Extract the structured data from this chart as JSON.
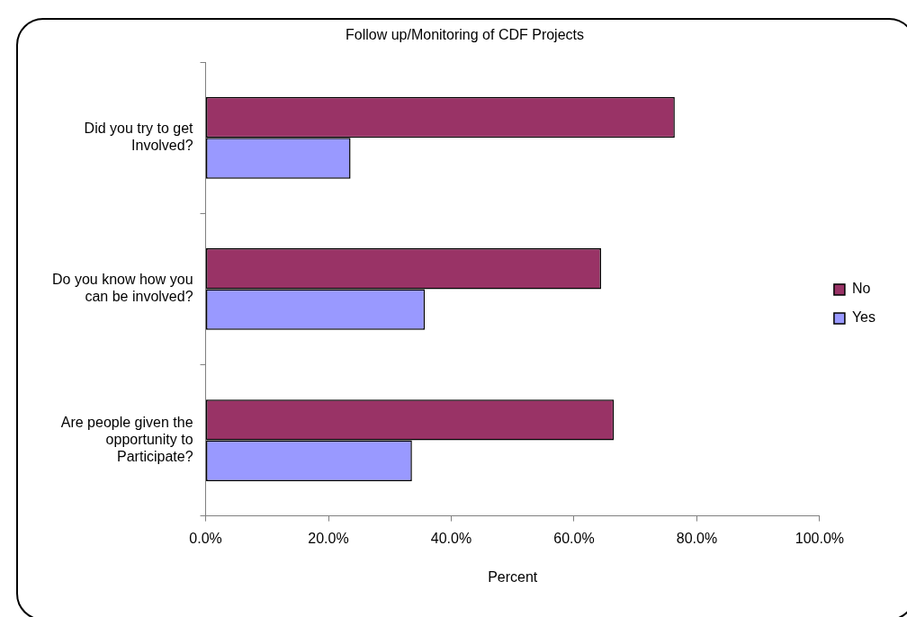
{
  "chart_data": {
    "type": "bar",
    "orientation": "horizontal",
    "title": "Follow up/Monitoring of CDF Projects",
    "xlabel": "Percent",
    "categories": [
      "Did you try to get Involved?",
      "Do you know how you can be involved?",
      "Are people given the opportunity to Participate?"
    ],
    "series": [
      {
        "name": "No",
        "color": "#993366",
        "values": [
          76.4,
          64.4,
          66.5
        ]
      },
      {
        "name": "Yes",
        "color": "#9999ff",
        "values": [
          23.6,
          35.7,
          33.6
        ]
      }
    ],
    "xlim": [
      0,
      100
    ],
    "xticks": [
      {
        "value": 0,
        "label": "0.0%"
      },
      {
        "value": 20,
        "label": "20.0%"
      },
      {
        "value": 40,
        "label": "40.0%"
      },
      {
        "value": 60,
        "label": "60.0%"
      },
      {
        "value": 80,
        "label": "80.0%"
      },
      {
        "value": 100,
        "label": "100.0%"
      }
    ],
    "grid": false,
    "legend": "right"
  }
}
